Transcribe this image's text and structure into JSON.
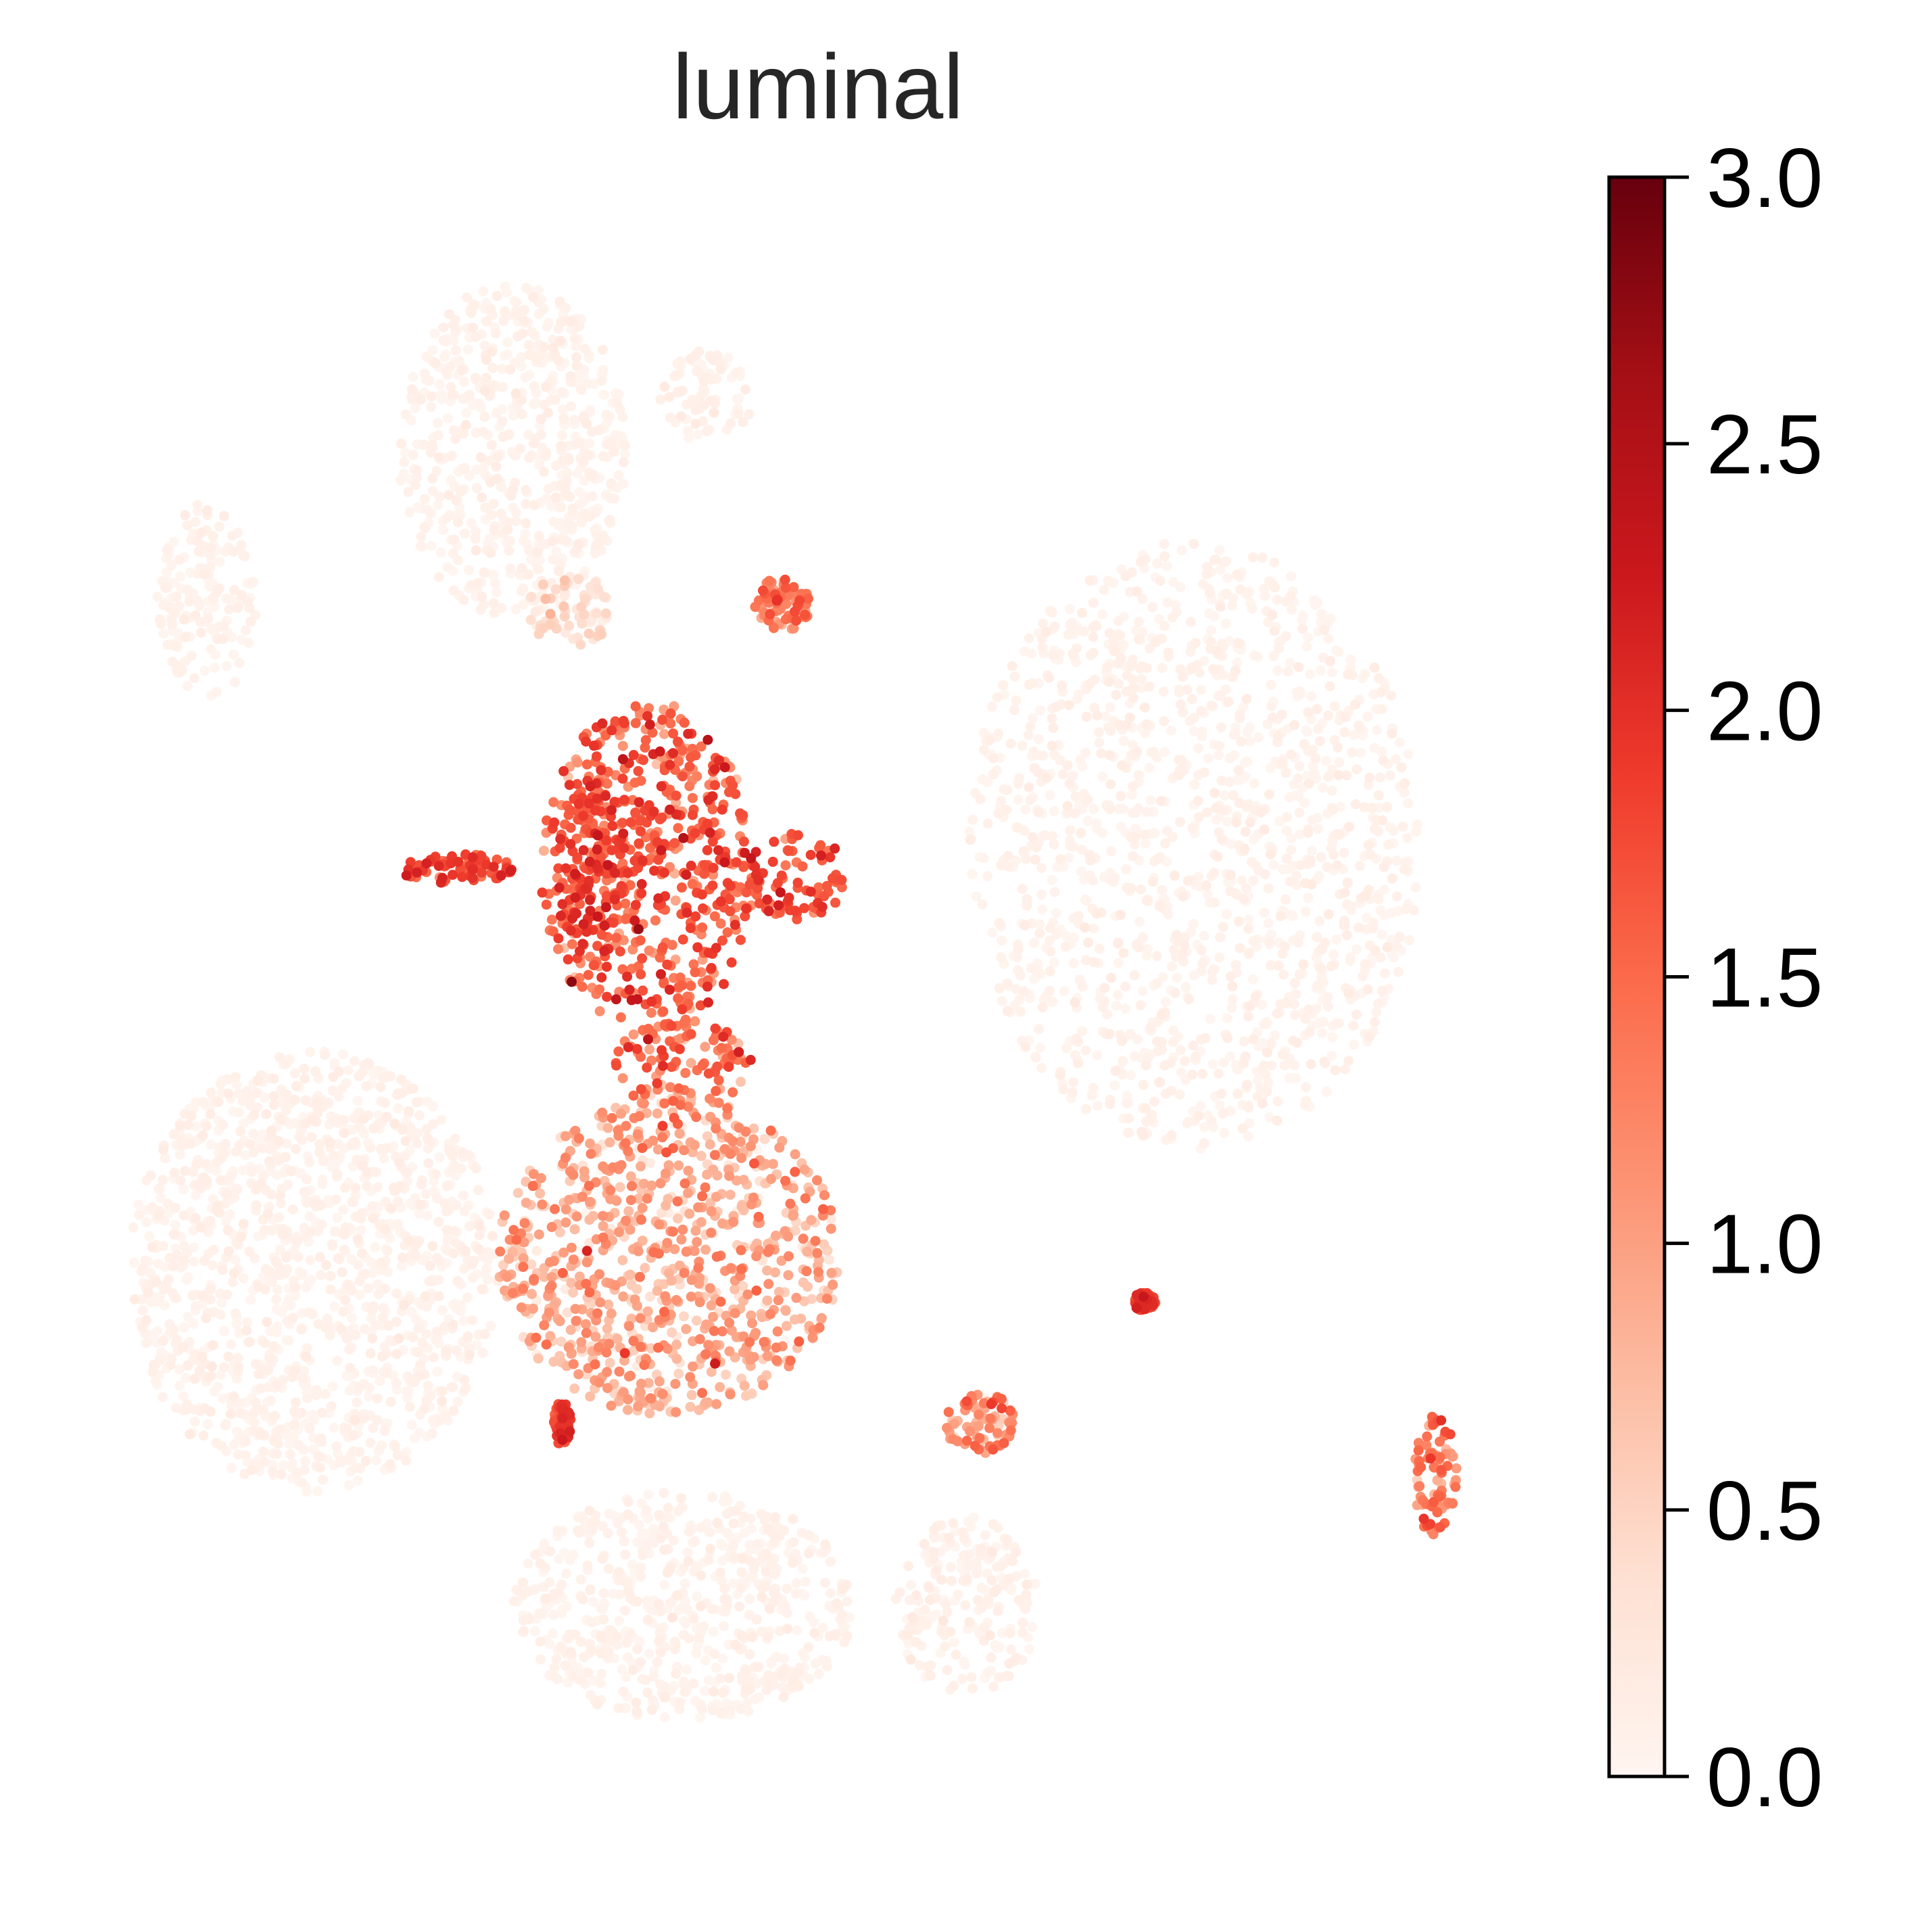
{
  "chart_data": {
    "type": "scatter",
    "title": "luminal",
    "xlabel": "",
    "ylabel": "",
    "grid": false,
    "axes_visible": false,
    "colormap": {
      "name": "Reds",
      "stops": [
        "#fff5f0",
        "#fee0d2",
        "#fcbba1",
        "#fc9272",
        "#fb6a4a",
        "#ef3b2c",
        "#cb181d",
        "#a50f15",
        "#67000d"
      ]
    },
    "colorbar": {
      "range": [
        0,
        3
      ],
      "ticks": [
        0.0,
        0.5,
        1.0,
        1.5,
        2.0,
        2.5,
        3.0
      ],
      "tick_labels": [
        "0.0",
        "0.5",
        "1.0",
        "1.5",
        "2.0",
        "2.5",
        "3.0"
      ],
      "placement": "right"
    },
    "x_range": [
      0,
      100
    ],
    "y_range": [
      0,
      100
    ],
    "clusters": [
      {
        "name": "top-left",
        "cx": 28,
        "cy": 86,
        "rx": 8,
        "ry": 11,
        "level": 0.05,
        "spread": 0.05
      },
      {
        "name": "top-middle",
        "cx": 41.5,
        "cy": 89.5,
        "rx": 3.5,
        "ry": 3,
        "level": 0.07,
        "spread": 0.06
      },
      {
        "name": "far-left",
        "cx": 6.5,
        "cy": 76,
        "rx": 3.5,
        "ry": 6.5,
        "level": 0.05,
        "spread": 0.05
      },
      {
        "name": "upper-small",
        "cx": 32,
        "cy": 75.5,
        "rx": 3,
        "ry": 2.5,
        "level": 0.3,
        "spread": 0.2
      },
      {
        "name": "upper-small-2",
        "cx": 47,
        "cy": 75.8,
        "rx": 2,
        "ry": 1.8,
        "level": 1.3,
        "spread": 0.3
      },
      {
        "name": "right-large",
        "cx": 76,
        "cy": 60,
        "rx": 16,
        "ry": 20,
        "level": 0.05,
        "spread": 0.05
      },
      {
        "name": "luminal-upper",
        "cx": 37.5,
        "cy": 58.5,
        "rx": 7.5,
        "ry": 11,
        "level": 1.55,
        "spread": 0.35
      },
      {
        "name": "luminal-upper-left",
        "cx": 33.5,
        "cy": 58.5,
        "rx": 2.5,
        "ry": 6,
        "level": 1.8,
        "spread": 0.25
      },
      {
        "name": "luminal-arm",
        "cx": 24,
        "cy": 58.5,
        "rx": 4,
        "ry": 1,
        "level": 1.75,
        "spread": 0.2
      },
      {
        "name": "luminal-right-lobe",
        "cx": 48,
        "cy": 58,
        "rx": 3.5,
        "ry": 3,
        "level": 1.7,
        "spread": 0.25
      },
      {
        "name": "luminal-neck",
        "cx": 40,
        "cy": 45.5,
        "rx": 5,
        "ry": 3,
        "level": 1.35,
        "spread": 0.4
      },
      {
        "name": "luminal-lower",
        "cx": 39,
        "cy": 33,
        "rx": 12,
        "ry": 10.5,
        "level": 0.85,
        "spread": 0.35
      },
      {
        "name": "left-large",
        "cx": 14,
        "cy": 32,
        "rx": 13,
        "ry": 14.5,
        "level": 0.05,
        "spread": 0.05
      },
      {
        "name": "bottom",
        "cx": 40,
        "cy": 10,
        "rx": 12,
        "ry": 7.5,
        "level": 0.05,
        "spread": 0.05
      },
      {
        "name": "bottom-right",
        "cx": 60,
        "cy": 10,
        "rx": 5,
        "ry": 6,
        "level": 0.06,
        "spread": 0.06
      },
      {
        "name": "small-right-1",
        "cx": 61,
        "cy": 22,
        "rx": 2.5,
        "ry": 2,
        "level": 1.0,
        "spread": 0.4
      },
      {
        "name": "small-right-2",
        "cx": 72.5,
        "cy": 30,
        "rx": 0.8,
        "ry": 0.6,
        "level": 1.8,
        "spread": 0.2
      },
      {
        "name": "tail-right",
        "cx": 93,
        "cy": 18.5,
        "rx": 1.5,
        "ry": 4,
        "level": 1.3,
        "spread": 0.3
      },
      {
        "name": "small-left-tail",
        "cx": 31.5,
        "cy": 22,
        "rx": 0.6,
        "ry": 1.5,
        "level": 1.8,
        "spread": 0.2
      }
    ]
  }
}
